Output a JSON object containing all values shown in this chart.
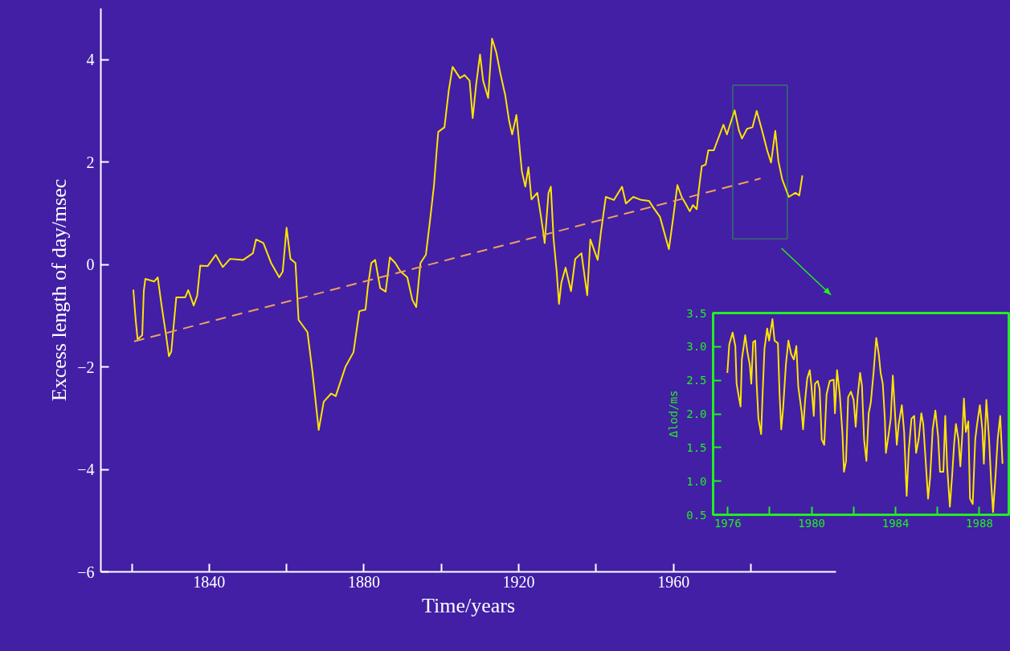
{
  "chart_data": [
    {
      "type": "line",
      "xlabel": "Time/years",
      "ylabel": "Excess length of day/msec",
      "xlim": [
        1812,
        2002
      ],
      "ylim": [
        -6,
        5
      ],
      "xticks": [
        {
          "value": 1820,
          "label": null
        },
        1840,
        {
          "value": 1860,
          "label": null
        },
        1880,
        {
          "value": 1900,
          "label": null
        },
        1920,
        {
          "value": 1940,
          "label": null
        },
        1960,
        {
          "value": 1980,
          "label": null
        }
      ],
      "yticks": [
        {
          "value": -6,
          "label": "−6"
        },
        {
          "value": -4,
          "label": "−4"
        },
        {
          "value": -2,
          "label": "−2"
        },
        0,
        2,
        4
      ],
      "series": [
        {
          "color": "#ffe400",
          "x": [
            1820.4,
            1821,
            1821.5,
            1822.7,
            1823.1,
            1823.5,
            1825.8,
            1826.7,
            1827.7,
            1828.8,
            1829.6,
            1830.2,
            1831.5,
            1833.8,
            1834.6,
            1836,
            1836.9,
            1837.7,
            1839.6,
            1841.7,
            1843.5,
            1845.4,
            1848.8,
            1851.3,
            1852.1,
            1854,
            1856,
            1858.1,
            1859,
            1860,
            1861,
            1862.3,
            1863.1,
            1865.4,
            1866.7,
            1868.3,
            1869.6,
            1871.5,
            1872.7,
            1875.2,
            1877.3,
            1878.8,
            1880.4,
            1881,
            1881.9,
            1882.9,
            1884.2,
            1885.6,
            1886.7,
            1888.1,
            1889.4,
            1891.2,
            1892.5,
            1893.5,
            1894.6,
            1896,
            1897.1,
            1898.1,
            1898.8,
            1899.2,
            1900.8,
            1901.9,
            1902.9,
            1904.8,
            1906,
            1907.3,
            1908.1,
            1909,
            1910,
            1910.8,
            1912.1,
            1913.1,
            1914.2,
            1915.2,
            1916.5,
            1917.5,
            1918.3,
            1919.4,
            1920,
            1920.8,
            1921.7,
            1922.5,
            1923.3,
            1924.8,
            1926.3,
            1926.7,
            1927.7,
            1928.3,
            1929,
            1929.8,
            1930.4,
            1931,
            1932.1,
            1933.5,
            1934.6,
            1936.2,
            1937.7,
            1938.5,
            1940.4,
            1941.2,
            1942.5,
            1944.6,
            1946.7,
            1947.7,
            1949.6,
            1951.7,
            1953.7,
            1954.8,
            1956.5,
            1958.8,
            1960,
            1961,
            1962.1,
            1963.1,
            1964.2,
            1965,
            1966,
            1966.5,
            1967.3,
            1968.3,
            1969,
            1970.4,
            1971.5,
            1972.9,
            1973.8,
            1974.8,
            1975.8,
            1976.9,
            1977.7,
            1979,
            1980.4,
            1981.5,
            1982.9,
            1984.2,
            1985.2,
            1986.3,
            1987.1,
            1988.1,
            1989.8,
            1991.5,
            1992.5,
            1993.3
          ],
          "values": [
            -0.49,
            -1.08,
            -1.46,
            -1.38,
            -0.52,
            -0.28,
            -0.33,
            -0.25,
            -0.8,
            -1.35,
            -1.79,
            -1.7,
            -0.64,
            -0.64,
            -0.5,
            -0.8,
            -0.61,
            -0.02,
            -0.03,
            0.19,
            -0.05,
            0.11,
            0.09,
            0.22,
            0.49,
            0.42,
            0.03,
            -0.25,
            -0.14,
            0.72,
            0.11,
            0.03,
            -1.08,
            -1.32,
            -2.1,
            -3.23,
            -2.68,
            -2.52,
            -2.57,
            -2.0,
            -1.71,
            -0.91,
            -0.88,
            -0.44,
            0.03,
            0.09,
            -0.46,
            -0.53,
            0.14,
            0.03,
            -0.13,
            -0.25,
            -0.69,
            -0.83,
            0.03,
            0.19,
            0.88,
            1.55,
            2.23,
            2.59,
            2.68,
            3.39,
            3.86,
            3.64,
            3.7,
            3.59,
            2.86,
            3.52,
            4.1,
            3.59,
            3.25,
            4.41,
            4.14,
            3.75,
            3.31,
            2.81,
            2.54,
            2.92,
            2.46,
            1.82,
            1.52,
            1.9,
            1.27,
            1.4,
            0.66,
            0.42,
            1.4,
            1.52,
            0.5,
            -0.13,
            -0.77,
            -0.36,
            -0.06,
            -0.52,
            0.11,
            0.22,
            -0.6,
            0.49,
            0.09,
            0.61,
            1.32,
            1.26,
            1.52,
            1.19,
            1.32,
            1.26,
            1.24,
            1.11,
            0.93,
            0.3,
            0.96,
            1.55,
            1.32,
            1.19,
            1.04,
            1.16,
            1.08,
            1.44,
            1.92,
            1.95,
            2.23,
            2.23,
            2.45,
            2.73,
            2.54,
            2.78,
            3.01,
            2.62,
            2.46,
            2.65,
            2.68,
            3.0,
            2.61,
            2.23,
            1.99,
            2.61,
            2.02,
            1.66,
            1.32,
            1.4,
            1.35,
            1.74
          ]
        },
        {
          "color": "#f0a060",
          "line_style": "dashed",
          "x": [
            1820.6,
            1982.5
          ],
          "values": [
            -1.5,
            1.68
          ]
        }
      ]
    },
    {
      "type": "line",
      "ylabel": "Δlod/ms",
      "xlim": [
        1975.3,
        1989.4
      ],
      "ylim": [
        0.5,
        3.5
      ],
      "xticks": [
        1976,
        {
          "value": 1978,
          "label": null
        },
        1980,
        {
          "value": 1982,
          "label": null
        },
        1984,
        {
          "value": 1986,
          "label": null
        },
        1988
      ],
      "yticks": [
        0.5,
        {
          "value": 1,
          "label": "1.0"
        },
        1.5,
        {
          "value": 2,
          "label": "2.0"
        },
        2.5,
        {
          "value": 3,
          "label": "3.0"
        },
        3.5
      ],
      "series": [
        {
          "color": "#ffe400",
          "x": [
            1975.98,
            1976.07,
            1976.23,
            1976.36,
            1976.42,
            1976.55,
            1976.61,
            1976.67,
            1976.78,
            1976.83,
            1976.93,
            1977.05,
            1977.12,
            1977.21,
            1977.31,
            1977.37,
            1977.46,
            1977.59,
            1977.66,
            1977.75,
            1977.88,
            1977.97,
            1978.13,
            1978.23,
            1978.39,
            1978.47,
            1978.55,
            1978.64,
            1978.77,
            1978.89,
            1979.02,
            1979.15,
            1979.27,
            1979.36,
            1979.53,
            1979.59,
            1979.69,
            1979.79,
            1979.91,
            1979.99,
            1980.1,
            1980.16,
            1980.29,
            1980.38,
            1980.48,
            1980.6,
            1980.71,
            1980.86,
            1981.05,
            1981.11,
            1981.21,
            1981.34,
            1981.47,
            1981.54,
            1981.64,
            1981.74,
            1981.87,
            1982.0,
            1982.1,
            1982.19,
            1982.31,
            1982.4,
            1982.5,
            1982.61,
            1982.72,
            1982.82,
            1982.95,
            1983.08,
            1983.2,
            1983.29,
            1983.39,
            1983.49,
            1983.54,
            1983.67,
            1983.77,
            1983.87,
            1983.96,
            1984.06,
            1984.15,
            1984.3,
            1984.41,
            1984.53,
            1984.63,
            1984.76,
            1984.89,
            1984.98,
            1985.1,
            1985.23,
            1985.32,
            1985.42,
            1985.55,
            1985.65,
            1985.77,
            1985.9,
            1986.03,
            1986.12,
            1986.28,
            1986.37,
            1986.46,
            1986.59,
            1986.71,
            1986.79,
            1986.88,
            1987.0,
            1987.09,
            1987.19,
            1987.26,
            1987.35,
            1987.47,
            1987.55,
            1987.68,
            1987.8,
            1987.89,
            1988.02,
            1988.14,
            1988.21,
            1988.33,
            1988.46,
            1988.56,
            1988.65,
            1988.78,
            1988.87,
            1988.99,
            1989.1
          ],
          "values": [
            2.61,
            3.03,
            3.21,
            3.01,
            2.45,
            2.21,
            2.11,
            2.81,
            3.05,
            3.17,
            2.93,
            2.73,
            2.45,
            3.07,
            3.09,
            2.49,
            1.93,
            1.7,
            2.29,
            2.97,
            3.27,
            3.09,
            3.41,
            3.09,
            3.05,
            2.29,
            1.77,
            2.09,
            2.73,
            3.09,
            2.89,
            2.81,
            3.01,
            2.41,
            2.01,
            1.77,
            2.21,
            2.53,
            2.65,
            2.41,
            1.97,
            2.45,
            2.49,
            2.37,
            1.62,
            1.54,
            2.29,
            2.49,
            2.51,
            2.01,
            2.65,
            2.29,
            1.7,
            1.14,
            1.3,
            2.25,
            2.33,
            2.21,
            1.81,
            2.25,
            2.61,
            2.41,
            1.62,
            1.3,
            2.01,
            2.17,
            2.61,
            3.13,
            2.89,
            2.61,
            2.45,
            1.93,
            1.42,
            1.7,
            1.93,
            2.57,
            2.09,
            1.54,
            1.85,
            2.13,
            1.73,
            0.78,
            1.46,
            1.93,
            1.97,
            1.42,
            1.62,
            2.01,
            1.85,
            1.38,
            0.74,
            1.06,
            1.77,
            2.05,
            1.66,
            1.14,
            1.14,
            1.97,
            1.22,
            0.62,
            1.14,
            1.54,
            1.85,
            1.62,
            1.22,
            1.73,
            2.23,
            1.73,
            1.89,
            0.74,
            0.66,
            1.62,
            1.85,
            2.13,
            1.77,
            1.26,
            2.21,
            1.62,
            0.98,
            0.54,
            1.14,
            1.62,
            1.97,
            1.26
          ]
        }
      ]
    }
  ]
}
